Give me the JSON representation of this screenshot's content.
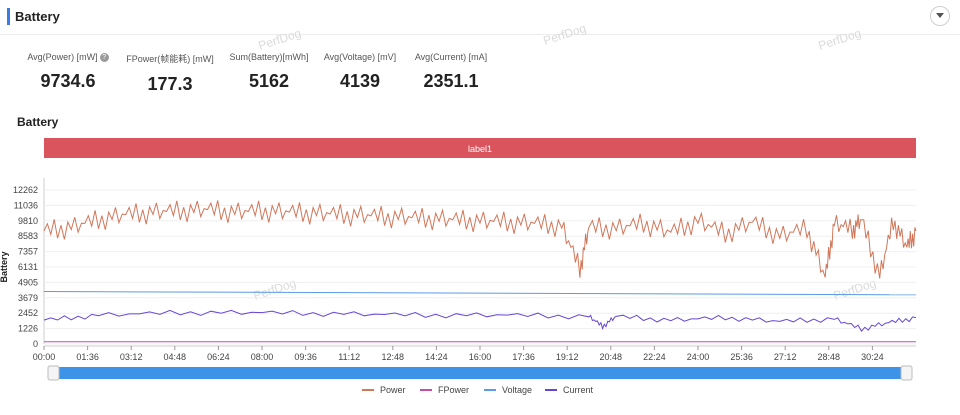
{
  "panel": {
    "title": "Battery",
    "collapse_icon": "chevron-down-icon"
  },
  "metrics": [
    {
      "label": "Avg(Power) [mW]",
      "value": "9734.6",
      "has_help": true
    },
    {
      "label": "FPower(帧能耗) [mW]",
      "value": "177.3",
      "has_help": false
    },
    {
      "label": "Sum(Battery)[mWh]",
      "value": "5162",
      "has_help": false
    },
    {
      "label": "Avg(Voltage) [mV]",
      "value": "4139",
      "has_help": false
    },
    {
      "label": "Avg(Current) [mA]",
      "value": "2351.1",
      "has_help": false
    }
  ],
  "watermark": "PerfDog",
  "chart_data": {
    "type": "line",
    "title": "Battery",
    "ylabel": "Battery",
    "xlabel": "",
    "label_band": "label1",
    "label_band_color": "#d9545d",
    "y_ticks": [
      "12262",
      "11036",
      "9810",
      "8583",
      "7357",
      "6131",
      "4905",
      "3679",
      "2452",
      "1226",
      "0"
    ],
    "y_tick_values": [
      12262,
      11036,
      9810,
      8583,
      7357,
      6131,
      4905,
      3679,
      2452,
      1226,
      0
    ],
    "ylim": [
      0,
      12262
    ],
    "x_ticks": [
      "00:00",
      "01:36",
      "03:12",
      "04:48",
      "06:24",
      "08:00",
      "09:36",
      "11:12",
      "12:48",
      "14:24",
      "16:00",
      "17:36",
      "19:12",
      "20:48",
      "22:24",
      "24:00",
      "25:36",
      "27:12",
      "28:48",
      "30:24"
    ],
    "x_range_seconds": [
      0,
      1920
    ],
    "grid": "horizontal",
    "legend_position": "bottom",
    "series": [
      {
        "name": "Power",
        "color": "#d0775a",
        "x": [
          0,
          60,
          120,
          180,
          240,
          300,
          360,
          420,
          480,
          540,
          600,
          660,
          720,
          780,
          840,
          900,
          960,
          1020,
          1080,
          1140,
          1180,
          1200,
          1260,
          1320,
          1380,
          1440,
          1500,
          1560,
          1620,
          1680,
          1720,
          1740,
          1780,
          1800,
          1840,
          1870,
          1900,
          1920
        ],
        "values": [
          9000,
          9300,
          9900,
          10300,
          10500,
          10600,
          10700,
          10500,
          10600,
          10500,
          10400,
          10300,
          10200,
          10100,
          10000,
          9900,
          9800,
          9700,
          9600,
          9400,
          6000,
          9300,
          9200,
          9600,
          8900,
          9800,
          8800,
          9700,
          8600,
          9200,
          5300,
          9600,
          9100,
          9900,
          5400,
          9800,
          7700,
          9000
        ]
      },
      {
        "name": "FPower",
        "color": "#c04fb0",
        "x": [
          0,
          1920
        ],
        "values": [
          180,
          175
        ]
      },
      {
        "name": "Voltage",
        "color": "#5a9be8",
        "x": [
          0,
          1920
        ],
        "values": [
          4180,
          3920
        ]
      },
      {
        "name": "Current",
        "color": "#6646d6",
        "x": [
          0,
          120,
          300,
          480,
          660,
          840,
          1020,
          1200,
          1230,
          1260,
          1380,
          1500,
          1620,
          1740,
          1800,
          1860,
          1920
        ],
        "values": [
          1900,
          2300,
          2500,
          2500,
          2400,
          2300,
          2300,
          2200,
          1400,
          2200,
          1900,
          2100,
          1800,
          2000,
          1200,
          1700,
          2100
        ]
      }
    ]
  }
}
